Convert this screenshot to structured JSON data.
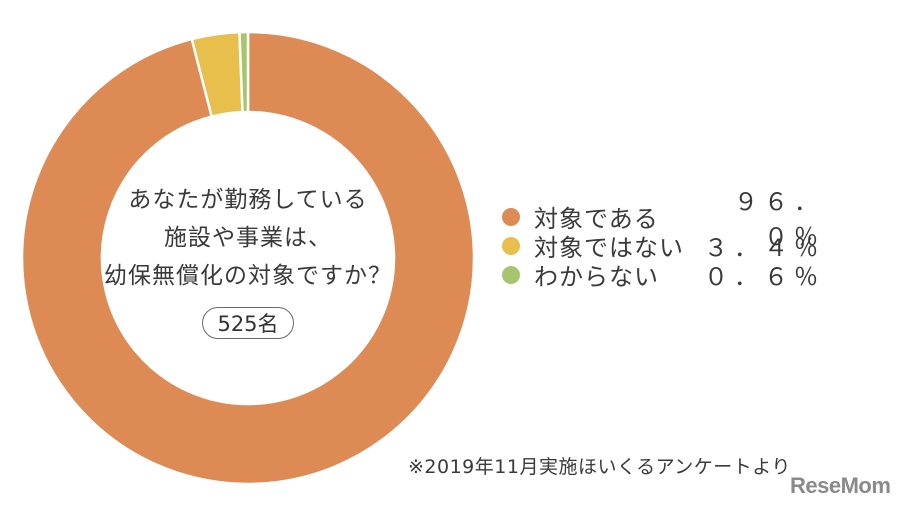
{
  "chart_data": {
    "type": "pie",
    "variant": "donut",
    "title": "あなたが勤務している施設や事業は、幼保無償化の対象ですか？",
    "sample_size": "525名",
    "categories": [
      "対象である",
      "対象ではない",
      "わからない"
    ],
    "values": [
      96.0,
      3.4,
      0.6
    ],
    "unit": "%",
    "colors": [
      "#dd8a55",
      "#e8bf4c",
      "#a6c56e"
    ],
    "legend_position": "right",
    "start_angle": "12 o'clock, clockwise",
    "source": "※2019年11月実施ほいくるアンケートより"
  },
  "center": {
    "lines": [
      "あなたが勤務している",
      "施設や事業は、",
      "幼保無償化の対象ですか？"
    ],
    "count": "525名"
  },
  "legend": [
    {
      "label": "対象である",
      "value": "９６．０％",
      "color": "#dd8a55"
    },
    {
      "label": "対象ではない",
      "value": "３．４％",
      "color": "#e8bf4c"
    },
    {
      "label": "わからない",
      "value": "０．６％",
      "color": "#a6c56e"
    }
  ],
  "footer": {
    "source": "※2019年11月実施ほいくるアンケートより",
    "logo": "ReseMom"
  }
}
